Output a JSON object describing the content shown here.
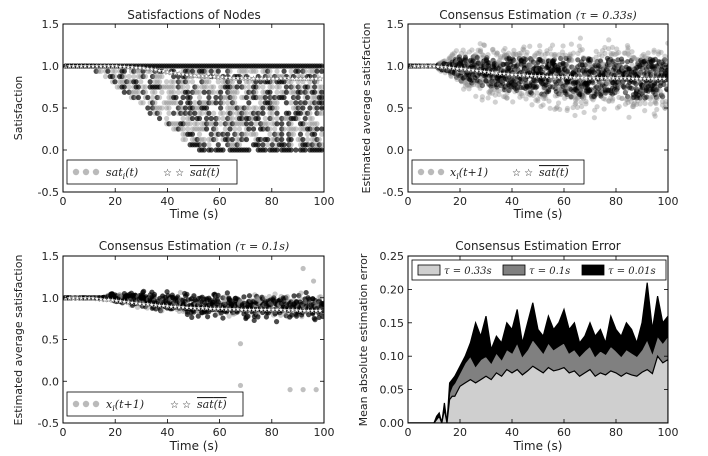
{
  "colors": {
    "dot_gray": "#8c8c8c",
    "dot_black": "#000000",
    "star_white": "#ffffff",
    "area_light": "#cfcfcf",
    "area_mid": "#808080",
    "area_dark": "#000000",
    "frame": "#000000"
  },
  "panels": {
    "p1": {
      "title": "Satisfactions of Nodes",
      "title_math": "",
      "xlabel": "Time (s)",
      "ylabel": "Satisfaction",
      "legend": [
        {
          "label": "sat",
          "sub": "i",
          "arg": "(t)"
        },
        {
          "label": "sat",
          "overline": true,
          "arg": "(t)"
        }
      ]
    },
    "p2": {
      "title": "Consensus Estimation",
      "title_math": "(τ = 0.33s)",
      "xlabel": "Time (s)",
      "ylabel": "Estimated average satisfaction",
      "legend": [
        {
          "label": "x",
          "sub": "i",
          "arg": "(t+1)"
        },
        {
          "label": "sat",
          "overline": true,
          "arg": "(t)"
        }
      ]
    },
    "p3": {
      "title": "Consensus Estimation",
      "title_math": "(τ = 0.1s)",
      "xlabel": "Time (s)",
      "ylabel": "Estimated average satisfaction",
      "legend": [
        {
          "label": "x",
          "sub": "i",
          "arg": "(t+1)"
        },
        {
          "label": "sat",
          "overline": true,
          "arg": "(t)"
        }
      ]
    },
    "p4": {
      "title": "Consensus Estimation Error",
      "title_math": "",
      "xlabel": "Time (s)",
      "ylabel": "Mean absolute estimation error",
      "legend": [
        {
          "label": "τ = 0.33s"
        },
        {
          "label": "τ = 0.1s"
        },
        {
          "label": "τ = 0.01s"
        }
      ]
    }
  },
  "chart_data": [
    {
      "type": "scatter",
      "title": "Satisfactions of Nodes",
      "xlabel": "Time (s)",
      "ylabel": "Satisfaction",
      "xlim": [
        0,
        100
      ],
      "ylim": [
        -0.5,
        1.5
      ],
      "xticks": [
        0,
        20,
        40,
        60,
        80,
        100
      ],
      "yticks": [
        -0.5,
        0.0,
        0.5,
        1.0,
        1.5
      ],
      "legend_position": "lower-left",
      "series": [
        {
          "name": "sat_i(t)",
          "style": "gray translucent dots",
          "discrete_levels": [
            0.0,
            0.0625,
            0.125,
            0.1875,
            0.25,
            0.3125,
            0.375,
            0.4375,
            0.5,
            0.5625,
            0.625,
            0.6875,
            0.75,
            0.8125,
            0.875,
            0.9375,
            1.0
          ]
        },
        {
          "name": "mean sat(t)",
          "style": "white stars",
          "x": [
            0,
            10,
            20,
            30,
            35,
            40,
            45,
            50,
            55,
            60,
            65,
            70,
            75,
            80,
            85,
            90,
            95,
            100
          ],
          "y": [
            1.0,
            1.0,
            1.0,
            0.98,
            0.96,
            0.93,
            0.91,
            0.89,
            0.88,
            0.87,
            0.86,
            0.86,
            0.85,
            0.85,
            0.86,
            0.85,
            0.85,
            0.85
          ]
        }
      ]
    },
    {
      "type": "scatter",
      "title": "Consensus Estimation (τ=0.33s)",
      "xlabel": "Time (s)",
      "ylabel": "Estimated average satisfaction",
      "xlim": [
        0,
        100
      ],
      "ylim": [
        -0.5,
        1.5
      ],
      "xticks": [
        0,
        20,
        40,
        60,
        80,
        100
      ],
      "yticks": [
        -0.5,
        0.0,
        0.5,
        1.0,
        1.5
      ],
      "legend_position": "lower-left",
      "series": [
        {
          "name": "x_i(t+1)",
          "style": "dense gray/black dots",
          "spread_by_time": {
            "x": [
              0,
              10,
              15,
              20,
              40,
              60,
              80,
              100
            ],
            "half_width": [
              0.0,
              0.0,
              0.1,
              0.25,
              0.35,
              0.4,
              0.4,
              0.4
            ]
          }
        },
        {
          "name": "mean sat(t)",
          "style": "white stars",
          "x": [
            0,
            10,
            20,
            30,
            40,
            50,
            60,
            70,
            80,
            90,
            100
          ],
          "y": [
            1.0,
            1.0,
            0.97,
            0.93,
            0.9,
            0.88,
            0.87,
            0.86,
            0.86,
            0.85,
            0.85
          ]
        }
      ]
    },
    {
      "type": "scatter",
      "title": "Consensus Estimation (τ=0.1s)",
      "xlabel": "Time (s)",
      "ylabel": "Estimated average satisfaction",
      "xlim": [
        0,
        100
      ],
      "ylim": [
        -0.5,
        1.5
      ],
      "xticks": [
        0,
        20,
        40,
        60,
        80,
        100
      ],
      "yticks": [
        -0.5,
        0.0,
        0.5,
        1.0,
        1.5
      ],
      "legend_position": "lower-left",
      "series": [
        {
          "name": "x_i(t+1)",
          "style": "black/gray dots",
          "spread_by_time": {
            "x": [
              0,
              15,
              20,
              40,
              60,
              80,
              100
            ],
            "half_width": [
              0.0,
              0.0,
              0.06,
              0.12,
              0.14,
              0.14,
              0.14
            ]
          }
        },
        {
          "name": "mean sat(t)",
          "style": "white stars",
          "x": [
            0,
            10,
            20,
            30,
            40,
            50,
            60,
            70,
            80,
            90,
            100
          ],
          "y": [
            1.0,
            1.0,
            0.97,
            0.93,
            0.9,
            0.88,
            0.87,
            0.86,
            0.86,
            0.85,
            0.85
          ]
        }
      ],
      "outliers": [
        {
          "x": 68,
          "y": -0.05
        },
        {
          "x": 68,
          "y": 0.45
        },
        {
          "x": 87,
          "y": -0.1
        },
        {
          "x": 92,
          "y": -0.1
        },
        {
          "x": 97,
          "y": -0.1
        },
        {
          "x": 92,
          "y": 1.35
        },
        {
          "x": 96,
          "y": 1.2
        }
      ]
    },
    {
      "type": "area",
      "title": "Consensus Estimation Error",
      "xlabel": "Time (s)",
      "ylabel": "Mean absolute estimation error",
      "xlim": [
        0,
        100
      ],
      "ylim": [
        0,
        0.25
      ],
      "xticks": [
        0,
        20,
        40,
        60,
        80,
        100
      ],
      "yticks": [
        0.0,
        0.05,
        0.1,
        0.15,
        0.2,
        0.25
      ],
      "legend_position": "top",
      "x": [
        0,
        10,
        11,
        12,
        13,
        14,
        15,
        16,
        17,
        18,
        20,
        22,
        24,
        26,
        28,
        30,
        32,
        34,
        36,
        38,
        40,
        42,
        44,
        46,
        48,
        50,
        52,
        54,
        56,
        58,
        60,
        62,
        64,
        66,
        68,
        70,
        72,
        74,
        76,
        78,
        80,
        82,
        84,
        86,
        88,
        90,
        92,
        94,
        96,
        98,
        100
      ],
      "series": [
        {
          "name": "τ = 0.33s",
          "color": "#cfcfcf",
          "values": [
            0,
            0,
            0.005,
            0.01,
            0.0,
            0.02,
            0.0,
            0.035,
            0.04,
            0.04,
            0.055,
            0.06,
            0.065,
            0.06,
            0.065,
            0.07,
            0.065,
            0.075,
            0.07,
            0.08,
            0.075,
            0.08,
            0.072,
            0.078,
            0.085,
            0.08,
            0.075,
            0.083,
            0.078,
            0.08,
            0.083,
            0.075,
            0.078,
            0.07,
            0.075,
            0.08,
            0.07,
            0.075,
            0.072,
            0.078,
            0.075,
            0.07,
            0.075,
            0.072,
            0.07,
            0.076,
            0.08,
            0.074,
            0.1,
            0.09,
            0.095
          ]
        },
        {
          "name": "τ = 0.1s",
          "color": "#808080",
          "values": [
            0,
            0,
            0.007,
            0.012,
            0.0,
            0.025,
            0.0,
            0.045,
            0.055,
            0.06,
            0.075,
            0.09,
            0.1,
            0.085,
            0.095,
            0.1,
            0.09,
            0.105,
            0.095,
            0.11,
            0.105,
            0.12,
            0.1,
            0.11,
            0.125,
            0.115,
            0.105,
            0.12,
            0.11,
            0.115,
            0.12,
            0.105,
            0.11,
            0.1,
            0.108,
            0.115,
            0.1,
            0.108,
            0.103,
            0.115,
            0.108,
            0.1,
            0.11,
            0.105,
            0.1,
            0.11,
            0.125,
            0.105,
            0.13,
            0.12,
            0.13
          ]
        },
        {
          "name": "τ = 0.01s",
          "color": "#000000",
          "values": [
            0,
            0,
            0.01,
            0.015,
            0.0,
            0.03,
            0.0,
            0.06,
            0.065,
            0.07,
            0.085,
            0.1,
            0.12,
            0.15,
            0.13,
            0.16,
            0.11,
            0.13,
            0.12,
            0.15,
            0.14,
            0.17,
            0.12,
            0.15,
            0.18,
            0.14,
            0.13,
            0.16,
            0.14,
            0.15,
            0.17,
            0.14,
            0.15,
            0.12,
            0.13,
            0.15,
            0.13,
            0.14,
            0.12,
            0.16,
            0.14,
            0.13,
            0.15,
            0.14,
            0.12,
            0.15,
            0.21,
            0.14,
            0.19,
            0.15,
            0.16
          ]
        }
      ]
    }
  ]
}
